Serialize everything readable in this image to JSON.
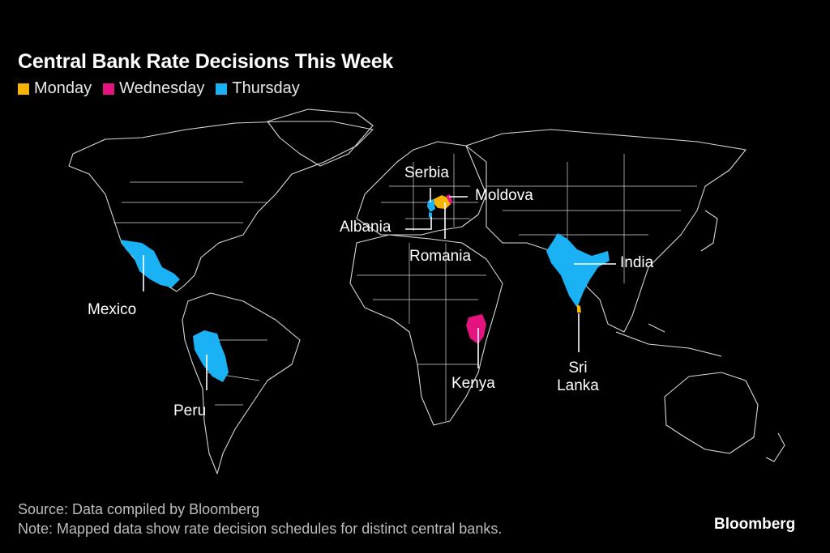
{
  "title": "Central Bank Rate Decisions This Week",
  "legend": [
    {
      "label": "Monday",
      "color": "#f7b500"
    },
    {
      "label": "Wednesday",
      "color": "#e5137f"
    },
    {
      "label": "Thursday",
      "color": "#1ab2f5"
    }
  ],
  "countries": [
    {
      "name": "Mexico",
      "day": "Thursday"
    },
    {
      "name": "Peru",
      "day": "Thursday"
    },
    {
      "name": "Serbia",
      "day": "Thursday"
    },
    {
      "name": "Albania",
      "day": "Thursday"
    },
    {
      "name": "Romania",
      "day": "Monday"
    },
    {
      "name": "Moldova",
      "day": "Wednesday"
    },
    {
      "name": "Kenya",
      "day": "Wednesday"
    },
    {
      "name": "India",
      "day": "Thursday"
    },
    {
      "name": "Sri Lanka",
      "day": "Monday"
    }
  ],
  "labels": {
    "mexico": "Mexico",
    "peru": "Peru",
    "serbia": "Serbia",
    "albania": "Albania",
    "romania": "Romania",
    "moldova": "Moldova",
    "kenya": "Kenya",
    "india": "India",
    "sri_lanka_1": "Sri",
    "sri_lanka_2": "Lanka"
  },
  "footer": {
    "source": "Source: Data compiled by Bloomberg",
    "note": "Note: Mapped data show rate decision schedules for distinct central banks."
  },
  "brand": "Bloomberg"
}
